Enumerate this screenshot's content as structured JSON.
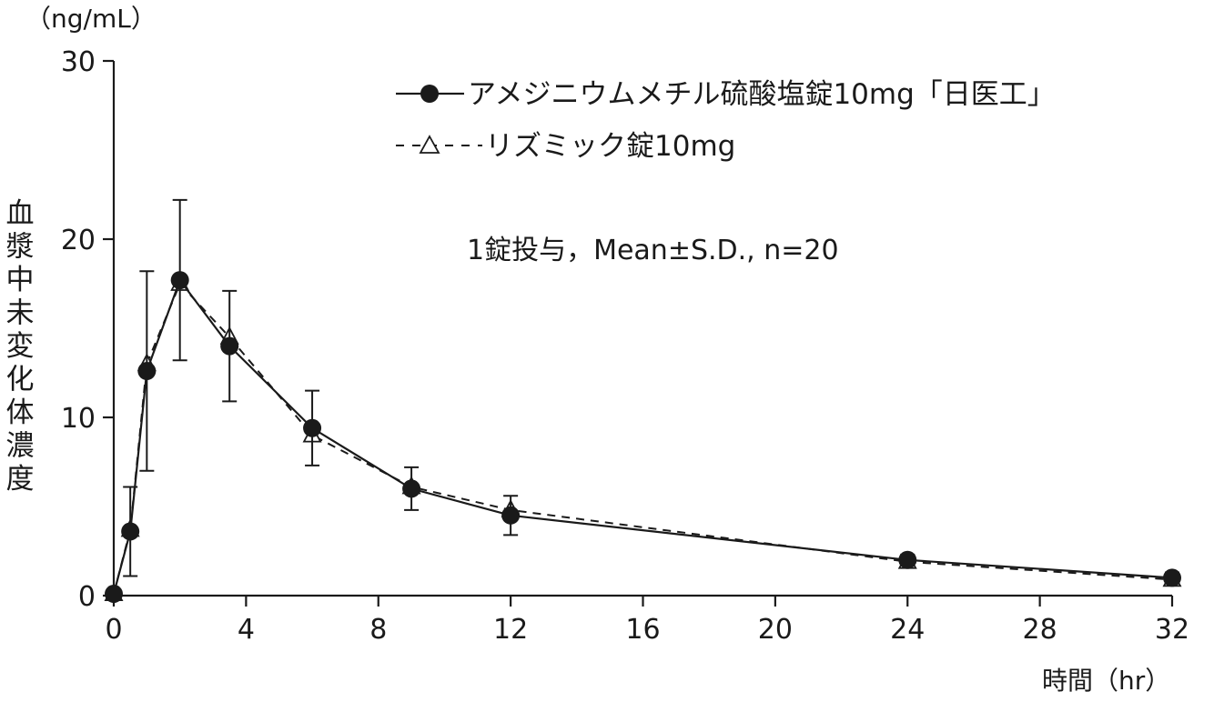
{
  "chart_data": {
    "type": "line",
    "y_unit": "（ng/mL）",
    "ylabel": "血漿中未変化体濃度",
    "xlabel": "時間（hr）",
    "annotation": "1錠投与，Mean±S.D., n=20",
    "xlim": [
      0,
      32
    ],
    "ylim": [
      0,
      30
    ],
    "x_ticks": [
      "0",
      "4",
      "8",
      "12",
      "16",
      "20",
      "24",
      "28",
      "32"
    ],
    "y_ticks": [
      "0",
      "10",
      "20",
      "30"
    ],
    "grid": false,
    "legend_position": "top-right",
    "series": [
      {
        "name": "アメジニウムメチル硫酸塩錠10mg「日医工」",
        "marker": "filled-circle",
        "line_style": "solid",
        "color": "#1a1a1a",
        "x": [
          0,
          0.5,
          1,
          2,
          3.5,
          6,
          9,
          12,
          24,
          32
        ],
        "y": [
          0.1,
          3.6,
          12.6,
          17.7,
          14.0,
          9.4,
          6.0,
          4.5,
          2.0,
          1.0
        ],
        "sd": [
          0,
          2.5,
          5.6,
          4.5,
          3.1,
          2.1,
          1.2,
          1.1,
          0.3,
          0.3
        ]
      },
      {
        "name": "リズミック錠10mg",
        "marker": "open-triangle",
        "line_style": "dashed",
        "color": "#1a1a1a",
        "x": [
          0,
          0.5,
          1,
          2,
          3.5,
          6,
          9,
          12,
          24,
          32
        ],
        "y": [
          0.1,
          3.7,
          13.0,
          17.5,
          14.5,
          9.0,
          6.1,
          4.8,
          1.9,
          0.9
        ]
      }
    ]
  }
}
